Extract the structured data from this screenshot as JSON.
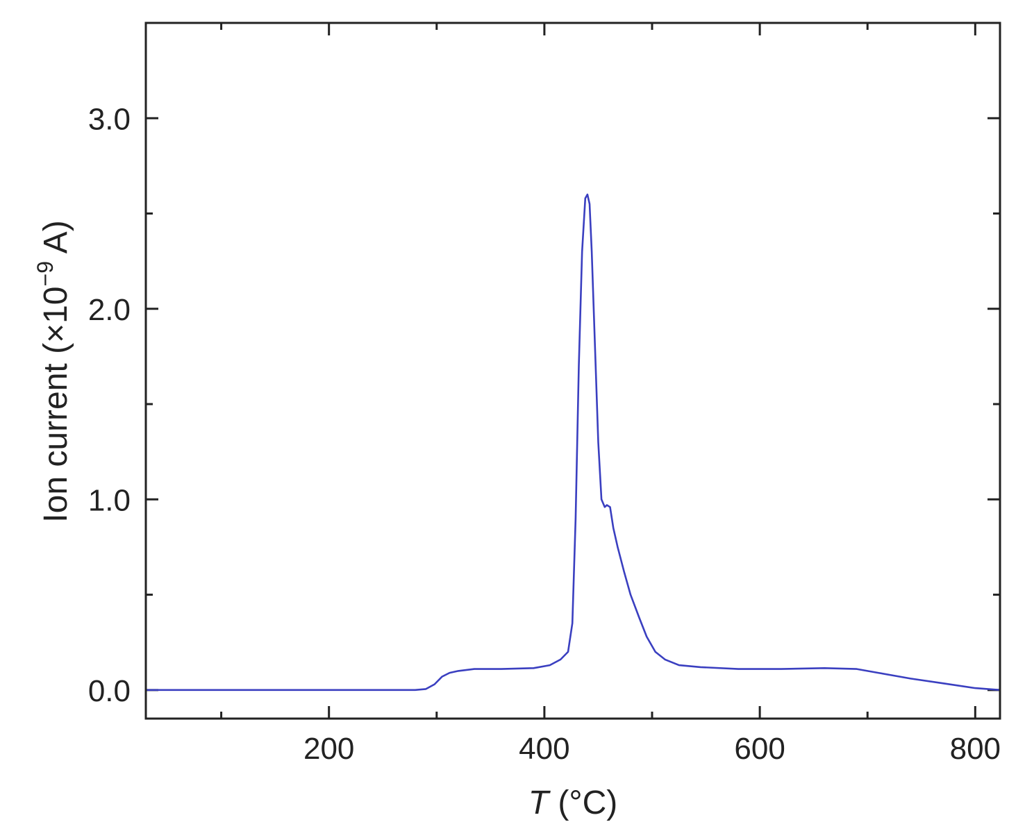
{
  "chart_data": {
    "type": "line",
    "title": "",
    "xlabel": {
      "symbol": "T",
      "unit": " (°C)"
    },
    "ylabel": {
      "text": "Ion current (×10",
      "exponent": "−9",
      "unit": " A)"
    },
    "xlim": [
      30,
      823
    ],
    "ylim": [
      -0.15,
      3.5
    ],
    "xticks": [
      200,
      400,
      600,
      800
    ],
    "xtick_labels": [
      "200",
      "400",
      "600",
      "800"
    ],
    "xminor": [
      100,
      300,
      500,
      700
    ],
    "yticks": [
      0,
      1,
      2,
      3
    ],
    "ytick_labels": [
      "0.0",
      "1.0",
      "2.0",
      "3.0"
    ],
    "yminor": [
      0.5,
      1.5,
      2.5
    ],
    "grid": false,
    "series": [
      {
        "color": "#3a3fc0",
        "x": [
          30,
          100,
          200,
          280,
          290,
          298,
          305,
          312,
          320,
          335,
          360,
          390,
          405,
          415,
          422,
          426,
          429,
          432,
          435,
          438,
          440,
          442,
          444,
          447,
          450,
          453,
          456,
          458,
          461,
          464,
          468,
          474,
          480,
          488,
          495,
          503,
          512,
          525,
          545,
          580,
          620,
          660,
          690,
          710,
          740,
          770,
          800,
          823
        ],
        "y": [
          0.0,
          0.0,
          0.0,
          0.0,
          0.005,
          0.03,
          0.07,
          0.09,
          0.1,
          0.11,
          0.11,
          0.115,
          0.13,
          0.16,
          0.2,
          0.35,
          0.9,
          1.7,
          2.3,
          2.58,
          2.6,
          2.55,
          2.3,
          1.8,
          1.3,
          1.0,
          0.96,
          0.97,
          0.96,
          0.85,
          0.75,
          0.62,
          0.5,
          0.38,
          0.28,
          0.2,
          0.16,
          0.13,
          0.12,
          0.11,
          0.11,
          0.115,
          0.11,
          0.09,
          0.06,
          0.035,
          0.01,
          0.0
        ]
      }
    ]
  }
}
